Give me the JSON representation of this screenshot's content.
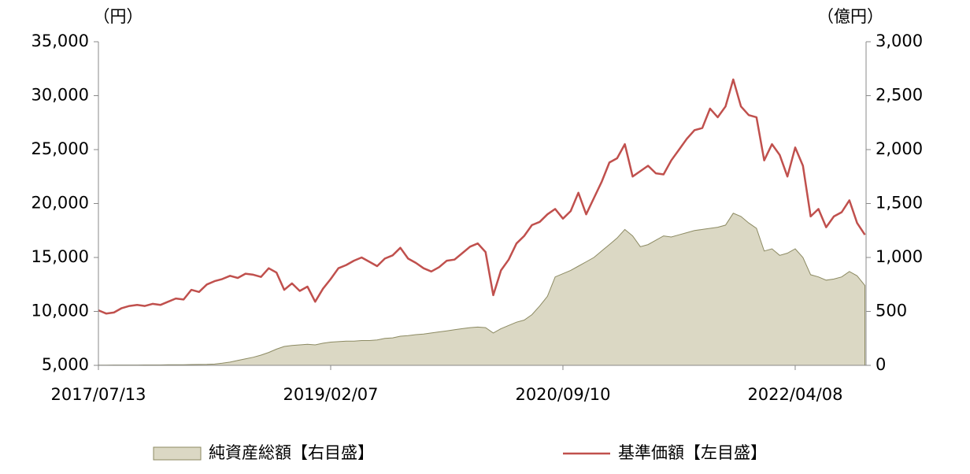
{
  "chart_data": {
    "type": "line",
    "y_label": "（円）",
    "y2_label": "（億円）",
    "categories": [
      "2017/07/13",
      null,
      null,
      null,
      null,
      null,
      null,
      null,
      null,
      null,
      null,
      null,
      null,
      null,
      null,
      null,
      null,
      null,
      null,
      null,
      null,
      null,
      null,
      null,
      null,
      null,
      null,
      null,
      null,
      null,
      "2019/02/07",
      null,
      null,
      null,
      null,
      null,
      null,
      null,
      null,
      null,
      null,
      null,
      null,
      null,
      null,
      null,
      null,
      null,
      null,
      null,
      null,
      null,
      null,
      null,
      null,
      null,
      null,
      null,
      null,
      null,
      "2020/09/10",
      null,
      null,
      null,
      null,
      null,
      null,
      null,
      null,
      null,
      null,
      null,
      null,
      null,
      null,
      null,
      null,
      null,
      null,
      null,
      null,
      null,
      null,
      null,
      null,
      null,
      null,
      null,
      null,
      null,
      "2022/04/08",
      null,
      null,
      null,
      null,
      null,
      null,
      null,
      null,
      null
    ],
    "series": [
      {
        "name": "純資産総額【右目盛】",
        "type": "area",
        "axis": "y2",
        "color": "#dbd8c4",
        "edge": "#8c8a62",
        "values": [
          2,
          2,
          3,
          3,
          3,
          3,
          4,
          4,
          4,
          5,
          5,
          6,
          7,
          8,
          9,
          12,
          20,
          30,
          45,
          60,
          75,
          95,
          120,
          150,
          175,
          185,
          190,
          195,
          190,
          205,
          215,
          220,
          225,
          225,
          230,
          230,
          235,
          250,
          255,
          270,
          275,
          285,
          290,
          300,
          310,
          320,
          330,
          340,
          350,
          355,
          350,
          300,
          340,
          370,
          400,
          420,
          470,
          550,
          640,
          820,
          850,
          880,
          920,
          960,
          1000,
          1060,
          1120,
          1180,
          1260,
          1200,
          1100,
          1120,
          1160,
          1200,
          1190,
          1210,
          1230,
          1250,
          1260,
          1270,
          1280,
          1300,
          1410,
          1380,
          1320,
          1270,
          1060,
          1080,
          1020,
          1040,
          1080,
          1000,
          840,
          820,
          790,
          800,
          820,
          870,
          830,
          740
        ]
      },
      {
        "name": "基準価額【左目盛】",
        "type": "line",
        "color": "#c0504d",
        "values": [
          10100,
          9800,
          9900,
          10300,
          10500,
          10600,
          10500,
          10700,
          10600,
          10900,
          11200,
          11100,
          12000,
          11800,
          12500,
          12800,
          13000,
          13300,
          13100,
          13500,
          13400,
          13200,
          14000,
          13600,
          12000,
          12600,
          11900,
          12300,
          10900,
          12100,
          13000,
          14000,
          14300,
          14700,
          15000,
          14600,
          14200,
          14900,
          15200,
          15900,
          14900,
          14500,
          14000,
          13700,
          14100,
          14700,
          14800,
          15400,
          16000,
          16300,
          15500,
          11500,
          13800,
          14800,
          16300,
          17000,
          18000,
          18300,
          19000,
          19500,
          18600,
          19300,
          21000,
          19000,
          20500,
          22000,
          23800,
          24200,
          25500,
          22500,
          23000,
          23500,
          22800,
          22700,
          24000,
          25000,
          26000,
          26800,
          27000,
          28800,
          28000,
          29000,
          31500,
          29000,
          28200,
          28000,
          24000,
          25500,
          24500,
          22500,
          25200,
          23500,
          18800,
          19500,
          17800,
          18800,
          19200,
          20300,
          18200,
          17100
        ]
      }
    ],
    "ylim": [
      5000,
      35000
    ],
    "yticks": [
      {
        "value": 5000,
        "label": "5,000"
      },
      {
        "value": 10000,
        "label": "10,000"
      },
      {
        "value": 15000,
        "label": "15,000"
      },
      {
        "value": 20000,
        "label": "20,000"
      },
      {
        "value": 25000,
        "label": "25,000"
      },
      {
        "value": 30000,
        "label": "30,000"
      },
      {
        "value": 35000,
        "label": "35,000"
      }
    ],
    "y2lim": [
      0,
      3000
    ],
    "y2ticks": [
      0,
      500,
      {
        "value": 1000,
        "label": "1,000"
      },
      {
        "value": 1500,
        "label": "1,500"
      },
      {
        "value": 2000,
        "label": "2,000"
      },
      {
        "value": 2500,
        "label": "2,500"
      },
      {
        "value": 3000,
        "label": "3,000"
      }
    ],
    "grid": false,
    "legend": "bottom"
  }
}
